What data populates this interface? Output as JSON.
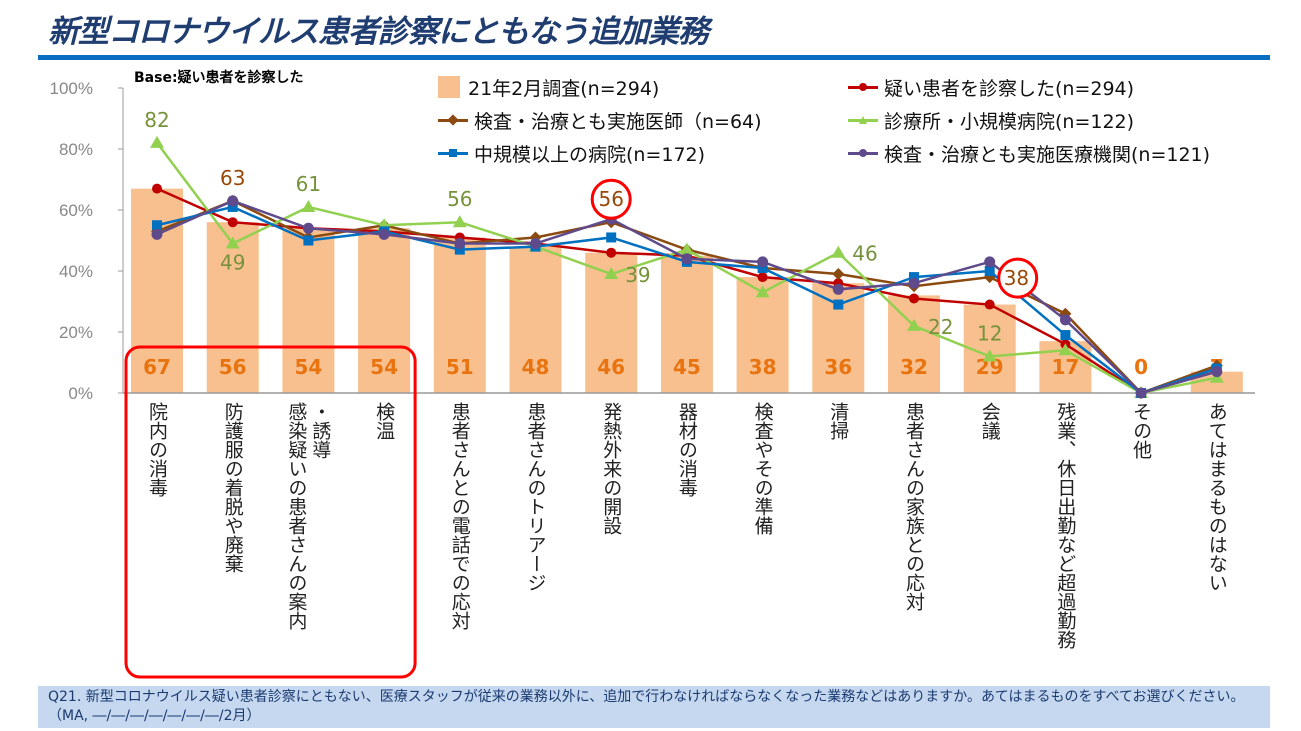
{
  "title": "新型コロナウイルス患者診察にともなう追加業務",
  "base_note": "Base:疑い患者を診察した",
  "question": "Q21. 新型コロナウイルス疑い患者診察にともない、医療スタッフが従来の業務以外に、追加で行わなければならなくなった業務などはありますか。あてはまるものをすべてお選びください。（MA, ―/―/―/―/―/―/―/2月）",
  "colors": {
    "bar": "#f8c08f",
    "bar_label": "#e8730f",
    "highlight": "#ff0000",
    "title": "#1f3d70"
  },
  "chart_data": {
    "type": "bar",
    "ylim": [
      0,
      100
    ],
    "yticks": [
      "0%",
      "20%",
      "40%",
      "60%",
      "80%",
      "100%"
    ],
    "grid": false,
    "legend": "top",
    "categories": [
      [
        "院内の消毒"
      ],
      [
        "防護服の着脱や廃棄"
      ],
      [
        "・誘導",
        "感染疑いの患者さんの案内"
      ],
      [
        "検温"
      ],
      [
        "患者さんとの電話での応対"
      ],
      [
        "患者さんのトリアージ"
      ],
      [
        "発熱外来の開設"
      ],
      [
        "器材の消毒"
      ],
      [
        "検査やその準備"
      ],
      [
        "清掃"
      ],
      [
        "患者さんの家族との応対"
      ],
      [
        "会議"
      ],
      [
        "残業、休日出勤など超過勤務"
      ],
      [
        "その他"
      ],
      [
        "あてはまるものはない"
      ]
    ],
    "bar_series": {
      "name": "21年2月調査(n=294)",
      "color": "#f8c08f",
      "values": [
        67,
        56,
        54,
        54,
        51,
        48,
        46,
        45,
        38,
        36,
        32,
        29,
        17,
        0,
        7
      ]
    },
    "series": [
      {
        "name": "疑い患者を診察した(n=294)",
        "color": "#c00000",
        "marker": "circle",
        "values": [
          67,
          56,
          54,
          53,
          51,
          49,
          46,
          45,
          38,
          36,
          31,
          29,
          16,
          0,
          8
        ]
      },
      {
        "name": "検査・治療とも実施医師（n=64)",
        "color": "#8b4a10",
        "marker": "diamond",
        "values": [
          53,
          63,
          51,
          55,
          49,
          51,
          56,
          47,
          41,
          39,
          35,
          38,
          26,
          0,
          9
        ]
      },
      {
        "name": "診療所・小規模病院(n=122)",
        "color": "#92d050",
        "marker": "triangle",
        "values": [
          82,
          49,
          61,
          55,
          56,
          48,
          39,
          47,
          33,
          46,
          22,
          12,
          14,
          0,
          5
        ]
      },
      {
        "name": "中規模以上の病院(n=172)",
        "color": "#0070c0",
        "marker": "square",
        "values": [
          55,
          61,
          50,
          53,
          47,
          48,
          51,
          43,
          41,
          29,
          38,
          40,
          19,
          0,
          8
        ]
      },
      {
        "name": "検査・治療とも実施医療機関(n=121)",
        "color": "#5f4b8b",
        "marker": "circle",
        "values": [
          52,
          63,
          54,
          52,
          49,
          49,
          57,
          44,
          43,
          34,
          36,
          43,
          24,
          0,
          7
        ]
      }
    ],
    "annotations": [
      {
        "series": 2,
        "index": 0,
        "text": "82",
        "pos": "above"
      },
      {
        "series": 1,
        "index": 1,
        "text": "63",
        "pos": "above"
      },
      {
        "series": 2,
        "index": 1,
        "text": "49",
        "pos": "below"
      },
      {
        "series": 2,
        "index": 2,
        "text": "61",
        "pos": "above"
      },
      {
        "series": 2,
        "index": 4,
        "text": "56",
        "pos": "above"
      },
      {
        "series": 1,
        "index": 6,
        "text": "56",
        "pos": "above",
        "circled": true
      },
      {
        "series": 2,
        "index": 6,
        "text": "39",
        "pos": "right"
      },
      {
        "series": 2,
        "index": 9,
        "text": "46",
        "pos": "right"
      },
      {
        "series": 2,
        "index": 10,
        "text": "22",
        "pos": "right"
      },
      {
        "series": 2,
        "index": 11,
        "text": "12",
        "pos": "above"
      },
      {
        "series": 1,
        "index": 11,
        "text": "38",
        "pos": "right",
        "circled": true
      }
    ],
    "highlight_box_categories": [
      0,
      3
    ]
  }
}
